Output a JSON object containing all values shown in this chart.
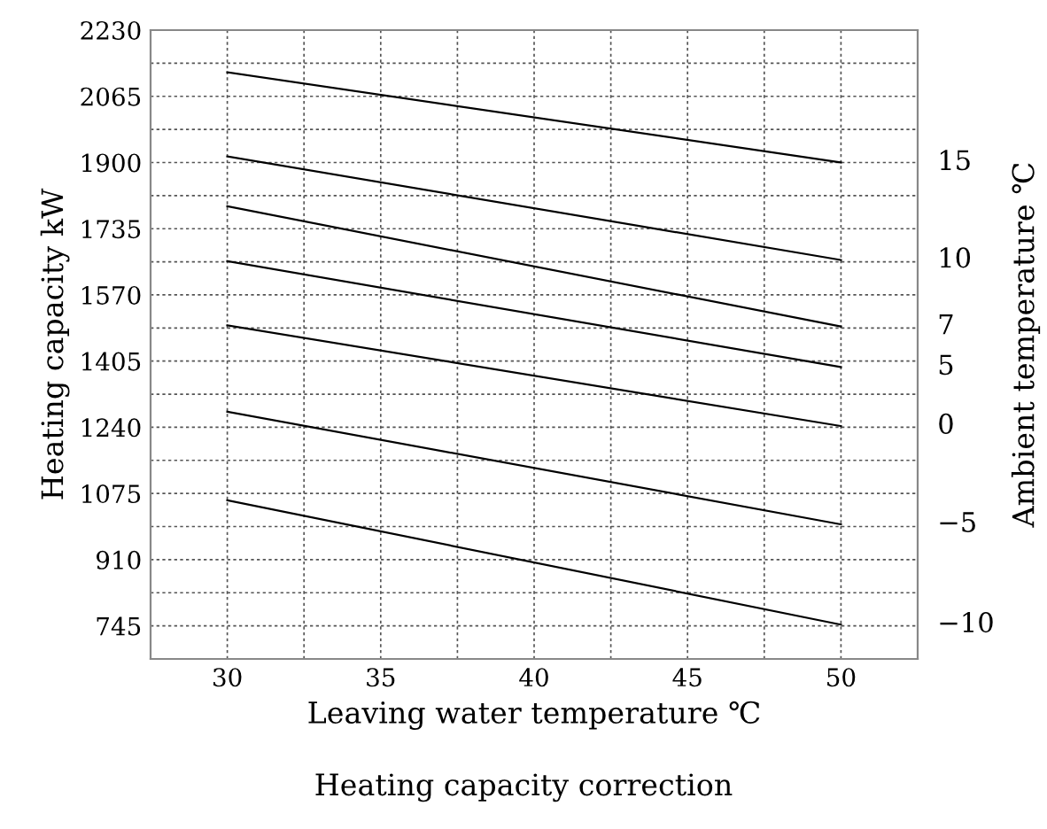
{
  "chart_data": {
    "type": "line",
    "title": "Heating capacity correction",
    "xlabel": "Leaving water temperature ℃",
    "ylabel": "Heating capacity kW",
    "y2label": "Ambient temperature ℃",
    "x": [
      30,
      50
    ],
    "series": [
      {
        "name": "15",
        "color": "#000000",
        "values": [
          2125,
          1900
        ]
      },
      {
        "name": "10",
        "color": "#000000",
        "values": [
          1915,
          1657
        ]
      },
      {
        "name": "7",
        "color": "#000000",
        "values": [
          1791,
          1491
        ]
      },
      {
        "name": "5",
        "color": "#000000",
        "values": [
          1654,
          1390
        ]
      },
      {
        "name": "0",
        "color": "#000000",
        "values": [
          1494,
          1243
        ]
      },
      {
        "name": "−5",
        "color": "#000000",
        "values": [
          1279,
          998
        ]
      },
      {
        "name": "−10",
        "color": "#000000",
        "values": [
          1058,
          748
        ]
      }
    ],
    "xlim": [
      27.5,
      52.5
    ],
    "xticks": [
      30,
      {
        "value": 32.5,
        "label": null
      },
      35,
      {
        "value": 37.5,
        "label": null
      },
      40,
      {
        "value": 42.5,
        "label": null
      },
      45,
      {
        "value": 47.5,
        "label": null
      },
      50
    ],
    "ylim": [
      662.5,
      2230
    ],
    "yticks": [
      745,
      {
        "value": 827.5,
        "label": null
      },
      910,
      {
        "value": 992.5,
        "label": null
      },
      1075,
      {
        "value": 1157.5,
        "label": null
      },
      1240,
      {
        "value": 1322.5,
        "label": null
      },
      1405,
      {
        "value": 1487.5,
        "label": null
      },
      1570,
      {
        "value": 1652.5,
        "label": null
      },
      1735,
      {
        "value": 1817.5,
        "label": null
      },
      1900,
      {
        "value": 1982.5,
        "label": null
      },
      2065,
      {
        "value": 2147.5,
        "label": null
      },
      2230
    ],
    "grid": true,
    "line_style": "solid",
    "marker": "none"
  }
}
